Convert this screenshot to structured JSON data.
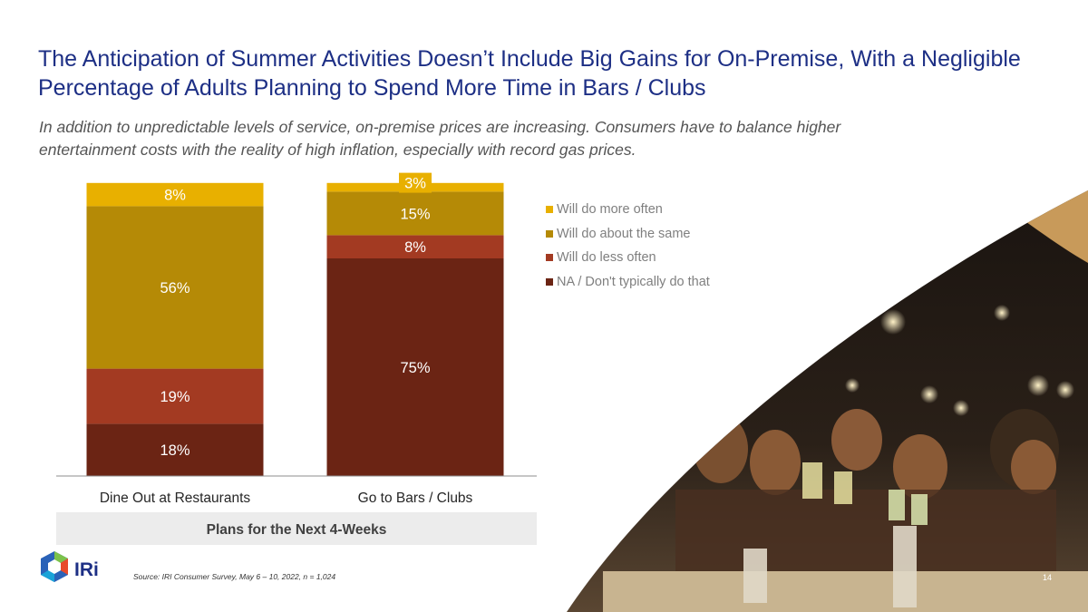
{
  "title": "The Anticipation of Summer Activities Doesn’t Include Big Gains for On-Premise, With a Negligible Percentage of Adults Planning to Spend More Time in Bars / Clubs",
  "subtitle": "In addition to unpredictable levels of service, on-premise prices are increasing. Consumers have to balance higher entertainment costs with the reality of high inflation, especially with record gas prices.",
  "source": "Source: IRI Consumer Survey, May 6 – 10, 2022, n = 1,024",
  "page_number": "14",
  "logo": {
    "text": "IRi"
  },
  "chart_data": {
    "type": "bar",
    "stacked": true,
    "categories": [
      "Dine Out at Restaurants",
      "Go to Bars / Clubs"
    ],
    "xlabel": "Plans for the Next 4-Weeks",
    "series": [
      {
        "name": "NA / Don't typically do that",
        "values": [
          18,
          75
        ],
        "labels": [
          "18%",
          "75%"
        ],
        "color": "#6b2414"
      },
      {
        "name": "Will do less often",
        "values": [
          19,
          8
        ],
        "labels": [
          "19%",
          "8%"
        ],
        "color": "#a33a22"
      },
      {
        "name": "Will do about the same",
        "values": [
          56,
          15
        ],
        "labels": [
          "56%",
          "15%"
        ],
        "color": "#b58a06"
      },
      {
        "name": "Will do more often",
        "values": [
          8,
          3
        ],
        "labels": [
          "8%",
          "3%"
        ],
        "color": "#e8b000"
      }
    ],
    "legend_position": "right",
    "grid": false
  }
}
